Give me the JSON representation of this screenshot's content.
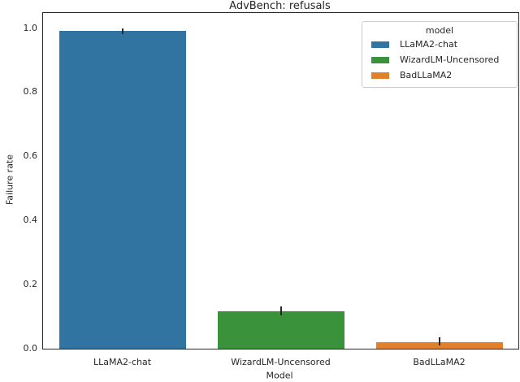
{
  "figure": {
    "title": "AdvBench: refusals",
    "xlabel": "Model",
    "ylabel": "Failure rate",
    "background_color": "#ffffff",
    "spine_color": "#262626",
    "text_color": "#262626",
    "errorbar_color": "#262626"
  },
  "legend": {
    "title": "model",
    "entries": [
      {
        "label": "LLaMA2-chat",
        "color": "#3274a1"
      },
      {
        "label": "WizardLM-Uncensored",
        "color": "#3a923a"
      },
      {
        "label": "BadLLaMA2",
        "color": "#e1812c"
      }
    ]
  },
  "chart_data": {
    "type": "bar",
    "title": "AdvBench: refusals",
    "xlabel": "Model",
    "ylabel": "Failure rate",
    "categories": [
      "LLaMA2-chat",
      "WizardLM-Uncensored",
      "BadLLaMA2"
    ],
    "series": [
      {
        "name": "Failure rate",
        "values": [
          0.99,
          0.117,
          0.02
        ],
        "error_low": [
          0.981,
          0.104,
          0.011
        ],
        "error_high": [
          0.999,
          0.131,
          0.035
        ]
      }
    ],
    "bar_colors": [
      "#3274a1",
      "#3a923a",
      "#e1812c"
    ],
    "ytick_labels": [
      "0.0",
      "0.2",
      "0.4",
      "0.6",
      "0.8",
      "1.0"
    ],
    "ylim": [
      0,
      1.047
    ],
    "bar_width_fraction": 0.8,
    "grid": false,
    "legend_title": "model",
    "legend_labels": [
      "LLaMA2-chat",
      "WizardLM-Uncensored",
      "BadLLaMA2"
    ],
    "legend_position": "upper right"
  }
}
